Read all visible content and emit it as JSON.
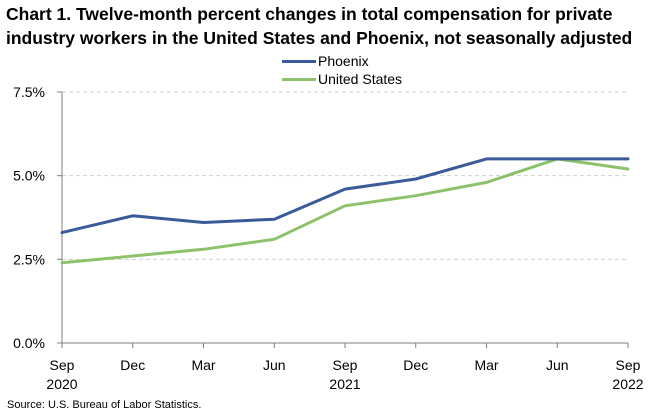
{
  "chart_data": {
    "type": "line",
    "title_lines": [
      "Chart 1. Twelve-month percent changes in total compensation for private",
      "industry workers in the United States and Phoenix, not seasonally adjusted"
    ],
    "x_tick_labels": [
      "Sep",
      "Dec",
      "Mar",
      "Jun",
      "Sep",
      "Dec",
      "Mar",
      "Jun",
      "Sep"
    ],
    "x_year_labels": [
      "2020",
      "",
      "",
      "",
      "2021",
      "",
      "",
      "",
      "2022"
    ],
    "y_tick_labels": [
      "7.5%",
      "5.0%",
      "2.5%",
      "0.0%"
    ],
    "y_ticks": [
      7.5,
      5.0,
      2.5,
      0.0
    ],
    "ylim": [
      0,
      7.5
    ],
    "grid": true,
    "legend_position": "top-center",
    "series": [
      {
        "name": "Phoenix",
        "color": "#3a5b9a",
        "values": [
          3.3,
          3.8,
          3.6,
          3.7,
          4.6,
          4.9,
          5.5,
          5.5,
          5.5
        ]
      },
      {
        "name": "United States",
        "color": "#8dc26a",
        "values": [
          2.4,
          2.6,
          2.8,
          3.1,
          4.1,
          4.4,
          4.8,
          5.5,
          5.2
        ]
      }
    ]
  },
  "source": "Source: U.S. Bureau of Labor Statistics."
}
